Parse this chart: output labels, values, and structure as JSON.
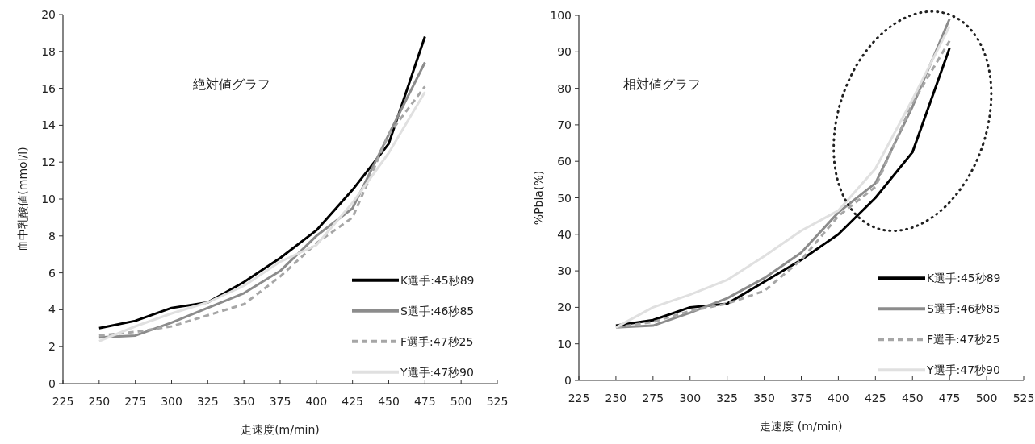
{
  "chart_data": [
    {
      "type": "line",
      "ylabel": "血中乳酸値(mmol/l)",
      "xlabel": "走速度(m/min)",
      "annotations": [
        "絶対値グラフ"
      ],
      "x": [
        250,
        275,
        300,
        325,
        350,
        375,
        400,
        425,
        450,
        475
      ],
      "xlim": [
        225,
        525
      ],
      "xticks": [
        225,
        250,
        275,
        300,
        325,
        350,
        375,
        400,
        425,
        450,
        475,
        500,
        525
      ],
      "ylim": [
        0,
        20
      ],
      "yticks": [
        0,
        2,
        4,
        6,
        8,
        10,
        12,
        14,
        16,
        18,
        20
      ],
      "grid": false,
      "legend": "right",
      "series": [
        {
          "name": "K選手:45秒89",
          "color": "#000000",
          "line_style": "solid",
          "values": [
            3.0,
            3.4,
            4.1,
            4.4,
            5.5,
            6.8,
            8.3,
            10.5,
            13.0,
            18.8
          ]
        },
        {
          "name": "S選手:46秒85",
          "color": "#8c8c8c",
          "line_style": "solid",
          "values": [
            2.5,
            2.6,
            3.3,
            4.1,
            4.9,
            6.1,
            8.0,
            9.5,
            13.5,
            17.4
          ]
        },
        {
          "name": "F選手:47秒25",
          "color": "#a6a6a6",
          "line_style": "dashed",
          "values": [
            2.6,
            2.8,
            3.1,
            3.7,
            4.3,
            5.8,
            7.6,
            9.0,
            13.5,
            16.1
          ]
        },
        {
          "name": "Y選手:47秒90",
          "color": "#e0e0e0",
          "line_style": "solid",
          "values": [
            2.3,
            3.1,
            3.8,
            4.4,
            5.3,
            6.6,
            7.5,
            9.8,
            12.5,
            15.8
          ]
        }
      ]
    },
    {
      "type": "line",
      "ylabel": "%Pbla(%)",
      "xlabel": "走速度 (m/min)",
      "annotations": [
        "相対値グラフ"
      ],
      "x": [
        250,
        275,
        300,
        325,
        350,
        375,
        400,
        425,
        450,
        475
      ],
      "xlim": [
        225,
        525
      ],
      "xticks": [
        225,
        250,
        275,
        300,
        325,
        350,
        375,
        400,
        425,
        450,
        475,
        500,
        525
      ],
      "ylim": [
        0,
        100
      ],
      "yticks": [
        0,
        10,
        20,
        30,
        40,
        50,
        60,
        70,
        80,
        90,
        100
      ],
      "grid": false,
      "legend": "right",
      "series": [
        {
          "name": "K選手:45秒89",
          "color": "#000000",
          "line_style": "solid",
          "values": [
            15,
            16.5,
            20,
            21,
            27,
            33,
            40,
            50,
            62.5,
            91
          ]
        },
        {
          "name": "S選手:46秒85",
          "color": "#8c8c8c",
          "line_style": "solid",
          "values": [
            14.5,
            15,
            18.5,
            22.5,
            28,
            35,
            46,
            54,
            75,
            99
          ]
        },
        {
          "name": "F選手:47秒25",
          "color": "#a6a6a6",
          "line_style": "dashed",
          "values": [
            14.5,
            16,
            19,
            21,
            24.5,
            33,
            45,
            53,
            76,
            93
          ]
        },
        {
          "name": "Y選手:47秒90",
          "color": "#e0e0e0",
          "line_style": "solid",
          "values": [
            14.5,
            20,
            23.5,
            27.5,
            34,
            41,
            46.5,
            58,
            77,
            97
          ]
        }
      ]
    }
  ]
}
